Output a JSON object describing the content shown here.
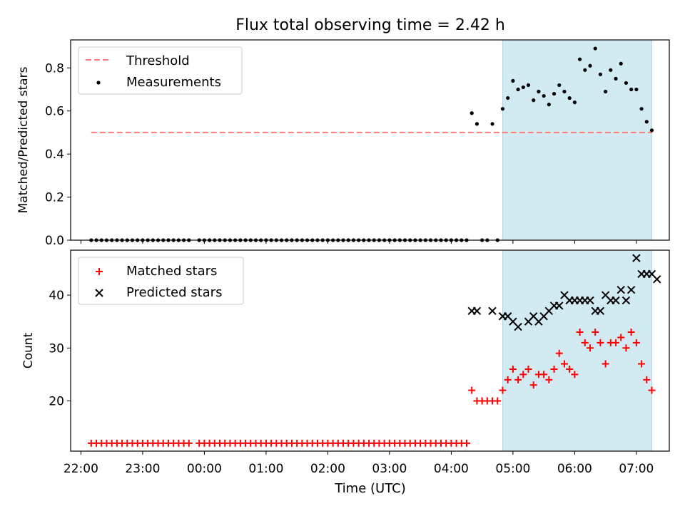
{
  "title": "Flux total observing time = 2.42 h",
  "x_axis": {
    "label": "Time (UTC)",
    "ticks": [
      "22:00",
      "23:00",
      "00:00",
      "01:00",
      "02:00",
      "03:00",
      "04:00",
      "05:00",
      "06:00",
      "07:00"
    ]
  },
  "colors": {
    "threshold": "#ff7b7b",
    "matched": "#ff0000",
    "predicted": "#000000",
    "shade": "#add8e6"
  },
  "chart_data": [
    {
      "type": "scatter",
      "ylabel": "Matched/Predicted stars",
      "xlim": [
        "21:50",
        "07:32"
      ],
      "ylim": [
        0,
        0.93
      ],
      "yticks": [
        "0.0",
        "0.2",
        "0.4",
        "0.6",
        "0.8"
      ],
      "grid": false,
      "legend_position": "top-left",
      "legend": [
        "Threshold",
        "Measurements"
      ],
      "shaded_region": {
        "x": [
          "04:50",
          "07:15"
        ]
      },
      "threshold": {
        "name": "Threshold",
        "value": 0.5,
        "x": [
          "22:10",
          "07:15"
        ]
      },
      "series": [
        {
          "name": "Measurements",
          "points": [
            [
              "22:10",
              0
            ],
            [
              "22:15",
              0
            ],
            [
              "22:20",
              0
            ],
            [
              "22:25",
              0
            ],
            [
              "22:30",
              0
            ],
            [
              "22:35",
              0
            ],
            [
              "22:40",
              0
            ],
            [
              "22:45",
              0
            ],
            [
              "22:50",
              0
            ],
            [
              "22:55",
              0
            ],
            [
              "23:00",
              0
            ],
            [
              "23:05",
              0
            ],
            [
              "23:10",
              0
            ],
            [
              "23:15",
              0
            ],
            [
              "23:20",
              0
            ],
            [
              "23:25",
              0
            ],
            [
              "23:30",
              0
            ],
            [
              "23:35",
              0
            ],
            [
              "23:40",
              0
            ],
            [
              "23:45",
              0
            ],
            [
              "23:55",
              0
            ],
            [
              "00:00",
              0
            ],
            [
              "00:05",
              0
            ],
            [
              "00:10",
              0
            ],
            [
              "00:15",
              0
            ],
            [
              "00:20",
              0
            ],
            [
              "00:25",
              0
            ],
            [
              "00:30",
              0
            ],
            [
              "00:35",
              0
            ],
            [
              "00:40",
              0
            ],
            [
              "00:45",
              0
            ],
            [
              "00:50",
              0
            ],
            [
              "00:55",
              0
            ],
            [
              "01:00",
              0
            ],
            [
              "01:05",
              0
            ],
            [
              "01:10",
              0
            ],
            [
              "01:15",
              0
            ],
            [
              "01:20",
              0
            ],
            [
              "01:25",
              0
            ],
            [
              "01:30",
              0
            ],
            [
              "01:35",
              0
            ],
            [
              "01:40",
              0
            ],
            [
              "01:45",
              0
            ],
            [
              "01:50",
              0
            ],
            [
              "01:55",
              0
            ],
            [
              "02:00",
              0
            ],
            [
              "02:05",
              0
            ],
            [
              "02:10",
              0
            ],
            [
              "02:15",
              0
            ],
            [
              "02:20",
              0
            ],
            [
              "02:25",
              0
            ],
            [
              "02:30",
              0
            ],
            [
              "02:35",
              0
            ],
            [
              "02:40",
              0
            ],
            [
              "02:45",
              0
            ],
            [
              "02:50",
              0
            ],
            [
              "02:55",
              0
            ],
            [
              "03:00",
              0
            ],
            [
              "03:05",
              0
            ],
            [
              "03:10",
              0
            ],
            [
              "03:15",
              0
            ],
            [
              "03:20",
              0
            ],
            [
              "03:25",
              0
            ],
            [
              "03:30",
              0
            ],
            [
              "03:35",
              0
            ],
            [
              "03:40",
              0
            ],
            [
              "03:45",
              0
            ],
            [
              "03:50",
              0
            ],
            [
              "03:55",
              0
            ],
            [
              "04:00",
              0
            ],
            [
              "04:05",
              0
            ],
            [
              "04:10",
              0
            ],
            [
              "04:15",
              0
            ],
            [
              "04:20",
              0.59
            ],
            [
              "04:25",
              0.54
            ],
            [
              "04:30",
              0
            ],
            [
              "04:35",
              0
            ],
            [
              "04:40",
              0.54
            ],
            [
              "04:45",
              0
            ],
            [
              "04:50",
              0.61
            ],
            [
              "04:55",
              0.66
            ],
            [
              "05:00",
              0.74
            ],
            [
              "05:05",
              0.7
            ],
            [
              "05:10",
              0.71
            ],
            [
              "05:15",
              0.72
            ],
            [
              "05:20",
              0.65
            ],
            [
              "05:25",
              0.69
            ],
            [
              "05:30",
              0.67
            ],
            [
              "05:35",
              0.63
            ],
            [
              "05:40",
              0.68
            ],
            [
              "05:45",
              0.72
            ],
            [
              "05:50",
              0.69
            ],
            [
              "05:55",
              0.66
            ],
            [
              "06:00",
              0.64
            ],
            [
              "06:05",
              0.84
            ],
            [
              "06:10",
              0.79
            ],
            [
              "06:15",
              0.81
            ],
            [
              "06:20",
              0.89
            ],
            [
              "06:25",
              0.77
            ],
            [
              "06:30",
              0.69
            ],
            [
              "06:35",
              0.79
            ],
            [
              "06:40",
              0.75
            ],
            [
              "06:45",
              0.82
            ],
            [
              "06:50",
              0.73
            ],
            [
              "06:55",
              0.7
            ],
            [
              "07:00",
              0.7
            ],
            [
              "07:05",
              0.61
            ],
            [
              "07:10",
              0.55
            ],
            [
              "07:15",
              0.51
            ]
          ]
        }
      ]
    },
    {
      "type": "scatter",
      "ylabel": "Count",
      "xlim": [
        "21:50",
        "07:32"
      ],
      "ylim": [
        10.5,
        48.5
      ],
      "yticks": [
        "20",
        "30",
        "40"
      ],
      "grid": false,
      "legend_position": "top-left",
      "legend": [
        "Matched stars",
        "Predicted stars"
      ],
      "shaded_region": {
        "x": [
          "04:50",
          "07:15"
        ]
      },
      "series": [
        {
          "name": "Matched stars",
          "marker": "+",
          "points": [
            [
              "22:10",
              12
            ],
            [
              "22:15",
              12
            ],
            [
              "22:20",
              12
            ],
            [
              "22:25",
              12
            ],
            [
              "22:30",
              12
            ],
            [
              "22:35",
              12
            ],
            [
              "22:40",
              12
            ],
            [
              "22:45",
              12
            ],
            [
              "22:50",
              12
            ],
            [
              "22:55",
              12
            ],
            [
              "23:00",
              12
            ],
            [
              "23:05",
              12
            ],
            [
              "23:10",
              12
            ],
            [
              "23:15",
              12
            ],
            [
              "23:20",
              12
            ],
            [
              "23:25",
              12
            ],
            [
              "23:30",
              12
            ],
            [
              "23:35",
              12
            ],
            [
              "23:40",
              12
            ],
            [
              "23:45",
              12
            ],
            [
              "23:55",
              12
            ],
            [
              "00:00",
              12
            ],
            [
              "00:05",
              12
            ],
            [
              "00:10",
              12
            ],
            [
              "00:15",
              12
            ],
            [
              "00:20",
              12
            ],
            [
              "00:25",
              12
            ],
            [
              "00:30",
              12
            ],
            [
              "00:35",
              12
            ],
            [
              "00:40",
              12
            ],
            [
              "00:45",
              12
            ],
            [
              "00:50",
              12
            ],
            [
              "00:55",
              12
            ],
            [
              "01:00",
              12
            ],
            [
              "01:05",
              12
            ],
            [
              "01:10",
              12
            ],
            [
              "01:15",
              12
            ],
            [
              "01:20",
              12
            ],
            [
              "01:25",
              12
            ],
            [
              "01:30",
              12
            ],
            [
              "01:35",
              12
            ],
            [
              "01:40",
              12
            ],
            [
              "01:45",
              12
            ],
            [
              "01:50",
              12
            ],
            [
              "01:55",
              12
            ],
            [
              "02:00",
              12
            ],
            [
              "02:05",
              12
            ],
            [
              "02:10",
              12
            ],
            [
              "02:15",
              12
            ],
            [
              "02:20",
              12
            ],
            [
              "02:25",
              12
            ],
            [
              "02:30",
              12
            ],
            [
              "02:35",
              12
            ],
            [
              "02:40",
              12
            ],
            [
              "02:45",
              12
            ],
            [
              "02:50",
              12
            ],
            [
              "02:55",
              12
            ],
            [
              "03:00",
              12
            ],
            [
              "03:05",
              12
            ],
            [
              "03:10",
              12
            ],
            [
              "03:15",
              12
            ],
            [
              "03:20",
              12
            ],
            [
              "03:25",
              12
            ],
            [
              "03:30",
              12
            ],
            [
              "03:35",
              12
            ],
            [
              "03:40",
              12
            ],
            [
              "03:45",
              12
            ],
            [
              "03:50",
              12
            ],
            [
              "03:55",
              12
            ],
            [
              "04:00",
              12
            ],
            [
              "04:05",
              12
            ],
            [
              "04:10",
              12
            ],
            [
              "04:15",
              12
            ],
            [
              "04:20",
              22
            ],
            [
              "04:25",
              20
            ],
            [
              "04:30",
              20
            ],
            [
              "04:35",
              20
            ],
            [
              "04:40",
              20
            ],
            [
              "04:45",
              20
            ],
            [
              "04:50",
              22
            ],
            [
              "04:55",
              24
            ],
            [
              "05:00",
              26
            ],
            [
              "05:05",
              24
            ],
            [
              "05:10",
              25
            ],
            [
              "05:15",
              26
            ],
            [
              "05:20",
              23
            ],
            [
              "05:25",
              25
            ],
            [
              "05:30",
              25
            ],
            [
              "05:35",
              24
            ],
            [
              "05:40",
              26
            ],
            [
              "05:45",
              29
            ],
            [
              "05:50",
              27
            ],
            [
              "05:55",
              26
            ],
            [
              "06:00",
              25
            ],
            [
              "06:05",
              33
            ],
            [
              "06:10",
              31
            ],
            [
              "06:15",
              30
            ],
            [
              "06:20",
              33
            ],
            [
              "06:25",
              31
            ],
            [
              "06:30",
              27
            ],
            [
              "06:35",
              31
            ],
            [
              "06:40",
              31
            ],
            [
              "06:45",
              32
            ],
            [
              "06:50",
              30
            ],
            [
              "06:55",
              33
            ],
            [
              "07:00",
              31
            ],
            [
              "07:05",
              27
            ],
            [
              "07:10",
              24
            ],
            [
              "07:15",
              22
            ]
          ]
        },
        {
          "name": "Predicted stars",
          "marker": "x",
          "points": [
            [
              "04:20",
              37
            ],
            [
              "04:25",
              37
            ],
            [
              "04:40",
              37
            ],
            [
              "04:50",
              36
            ],
            [
              "04:55",
              36
            ],
            [
              "05:00",
              35
            ],
            [
              "05:05",
              34
            ],
            [
              "05:15",
              35
            ],
            [
              "05:20",
              36
            ],
            [
              "05:25",
              35
            ],
            [
              "05:30",
              36
            ],
            [
              "05:35",
              37
            ],
            [
              "05:40",
              38
            ],
            [
              "05:45",
              38
            ],
            [
              "05:50",
              40
            ],
            [
              "05:55",
              39
            ],
            [
              "06:00",
              39
            ],
            [
              "06:05",
              39
            ],
            [
              "06:10",
              39
            ],
            [
              "06:15",
              39
            ],
            [
              "06:20",
              37
            ],
            [
              "06:25",
              37
            ],
            [
              "06:30",
              40
            ],
            [
              "06:35",
              39
            ],
            [
              "06:40",
              39
            ],
            [
              "06:45",
              41
            ],
            [
              "06:50",
              39
            ],
            [
              "06:55",
              41
            ],
            [
              "07:00",
              47
            ],
            [
              "07:05",
              44
            ],
            [
              "07:10",
              44
            ],
            [
              "07:15",
              44
            ],
            [
              "07:20",
              43
            ]
          ]
        }
      ]
    }
  ]
}
